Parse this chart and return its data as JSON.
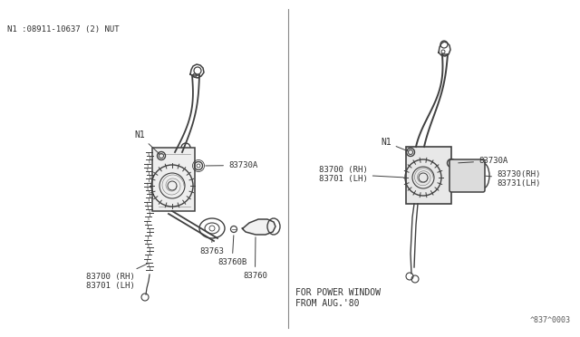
{
  "bg_color": "#ffffff",
  "panel_bg": "#ffffff",
  "line_color": "#404040",
  "text_color": "#303030",
  "divider_color": "#888888",
  "header_note": "N1 :08911-10637 (2) NUT",
  "footer_note": "FOR POWER WINDOW\nFROM AUG.'80",
  "footer_ref": "^837^0003",
  "figsize": [
    6.4,
    3.72
  ],
  "dpi": 100
}
